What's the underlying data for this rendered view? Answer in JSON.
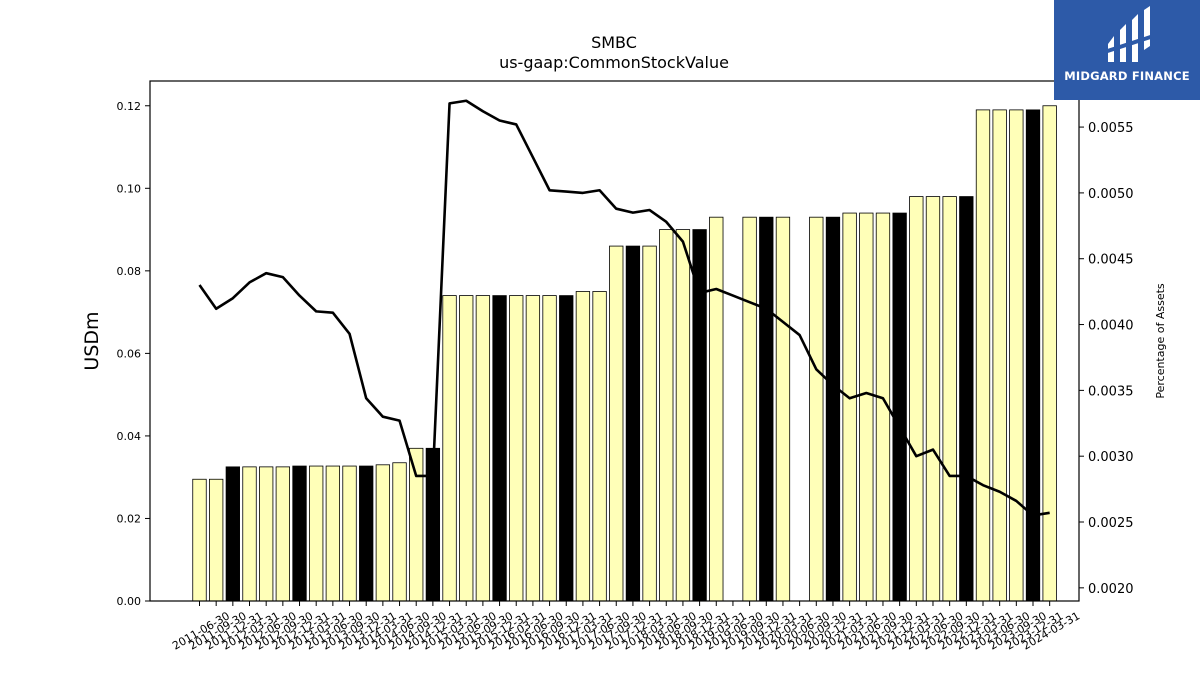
{
  "chart_data": {
    "type": "bar+line",
    "title": "SMBC",
    "subtitle": "us-gaap:CommonStockValue",
    "ylabel": "USDm",
    "y2label": "Percentage of Assets",
    "ylim": [
      0,
      0.126
    ],
    "y2lim": [
      0.0019,
      0.00585
    ],
    "yticks": [
      "0.00",
      "0.02",
      "0.04",
      "0.06",
      "0.08",
      "0.10",
      "0.12"
    ],
    "y2ticks": [
      "0.0020",
      "0.0025",
      "0.0030",
      "0.0035",
      "0.0040",
      "0.0045",
      "0.0050",
      "0.0055"
    ],
    "grid": false,
    "categories": [
      "2011-06-30",
      "2011-09-30",
      "2011-12-31",
      "2012-03-31",
      "2012-06-30",
      "2012-09-30",
      "2012-12-31",
      "2013-03-31",
      "2013-06-30",
      "2013-09-30",
      "2013-12-31",
      "2014-03-31",
      "2014-06-30",
      "2014-09-30",
      "2014-12-31",
      "2015-03-31",
      "2015-06-30",
      "2015-09-30",
      "2015-12-31",
      "2016-03-31",
      "2016-06-30",
      "2016-09-30",
      "2016-12-31",
      "2017-03-31",
      "2017-06-30",
      "2017-09-30",
      "2017-12-31",
      "2018-03-31",
      "2018-06-30",
      "2018-09-30",
      "2018-12-31",
      "2019-03-31",
      "2019-06-30",
      "2019-09-30",
      "2019-12-31",
      "2020-03-31",
      "2020-06-30",
      "2020-09-30",
      "2020-12-31",
      "2021-03-31",
      "2021-06-30",
      "2021-09-30",
      "2021-12-31",
      "2022-03-31",
      "2022-06-30",
      "2022-09-30",
      "2022-12-31",
      "2023-03-31",
      "2023-06-30",
      "2023-09-30",
      "2023-12-31",
      "2024-03-31"
    ],
    "values": [
      0.0295,
      0.0295,
      0.0325,
      0.0325,
      0.0325,
      0.0325,
      0.0327,
      0.0327,
      0.0327,
      0.0327,
      0.0327,
      0.033,
      0.0335,
      0.037,
      0.037,
      0.074,
      0.074,
      0.074,
      0.074,
      0.074,
      0.074,
      0.074,
      0.074,
      0.075,
      0.075,
      0.086,
      0.086,
      0.086,
      0.09,
      0.09,
      0.09,
      0.093,
      null,
      0.093,
      0.093,
      0.093,
      null,
      0.093,
      0.093,
      0.094,
      0.094,
      0.094,
      0.094,
      0.098,
      0.098,
      0.098,
      0.098,
      0.119,
      0.119,
      0.119,
      0.119,
      0.12
    ],
    "bar_colors": [
      "#ffffb8",
      "#ffffb8",
      "#000000",
      "#ffffb8",
      "#ffffb8",
      "#ffffb8",
      "#000000",
      "#ffffb8",
      "#ffffb8",
      "#ffffb8",
      "#000000",
      "#ffffb8",
      "#ffffb8",
      "#ffffb8",
      "#000000",
      "#ffffb8",
      "#ffffb8",
      "#ffffb8",
      "#000000",
      "#ffffb8",
      "#ffffb8",
      "#ffffb8",
      "#000000",
      "#ffffb8",
      "#ffffb8",
      "#ffffb8",
      "#000000",
      "#ffffb8",
      "#ffffb8",
      "#ffffb8",
      "#000000",
      "#ffffb8",
      "#ffffb8",
      "#ffffb8",
      "#000000",
      "#ffffb8",
      "#ffffb8",
      "#ffffb8",
      "#000000",
      "#ffffb8",
      "#ffffb8",
      "#ffffb8",
      "#000000",
      "#ffffb8",
      "#ffffb8",
      "#ffffb8",
      "#000000",
      "#ffffb8",
      "#ffffb8",
      "#ffffb8",
      "#000000",
      "#ffffb8"
    ],
    "line_values": [
      0.0043,
      0.00412,
      0.0042,
      0.00432,
      0.00439,
      0.00436,
      0.00422,
      0.0041,
      0.00409,
      0.00393,
      0.00344,
      0.0033,
      0.00327,
      0.00285,
      0.00285,
      0.00568,
      0.0057,
      0.00562,
      0.00555,
      0.00552,
      0.00527,
      0.00502,
      0.00501,
      0.005,
      0.00502,
      0.00488,
      0.00485,
      0.00487,
      0.00478,
      0.00463,
      0.00424,
      0.00427,
      0.00422,
      0.00417,
      0.00412,
      0.00402,
      0.00392,
      0.00366,
      0.00354,
      0.00344,
      0.00348,
      0.00344,
      0.00322,
      0.003,
      0.00305,
      0.00285,
      0.00285,
      0.00278,
      0.00273,
      0.00266,
      0.00255,
      0.00257
    ],
    "line_color": "#000000"
  },
  "brand": {
    "name": "MIDGARD FINANCE",
    "bg_color": "#2d5aa8"
  }
}
